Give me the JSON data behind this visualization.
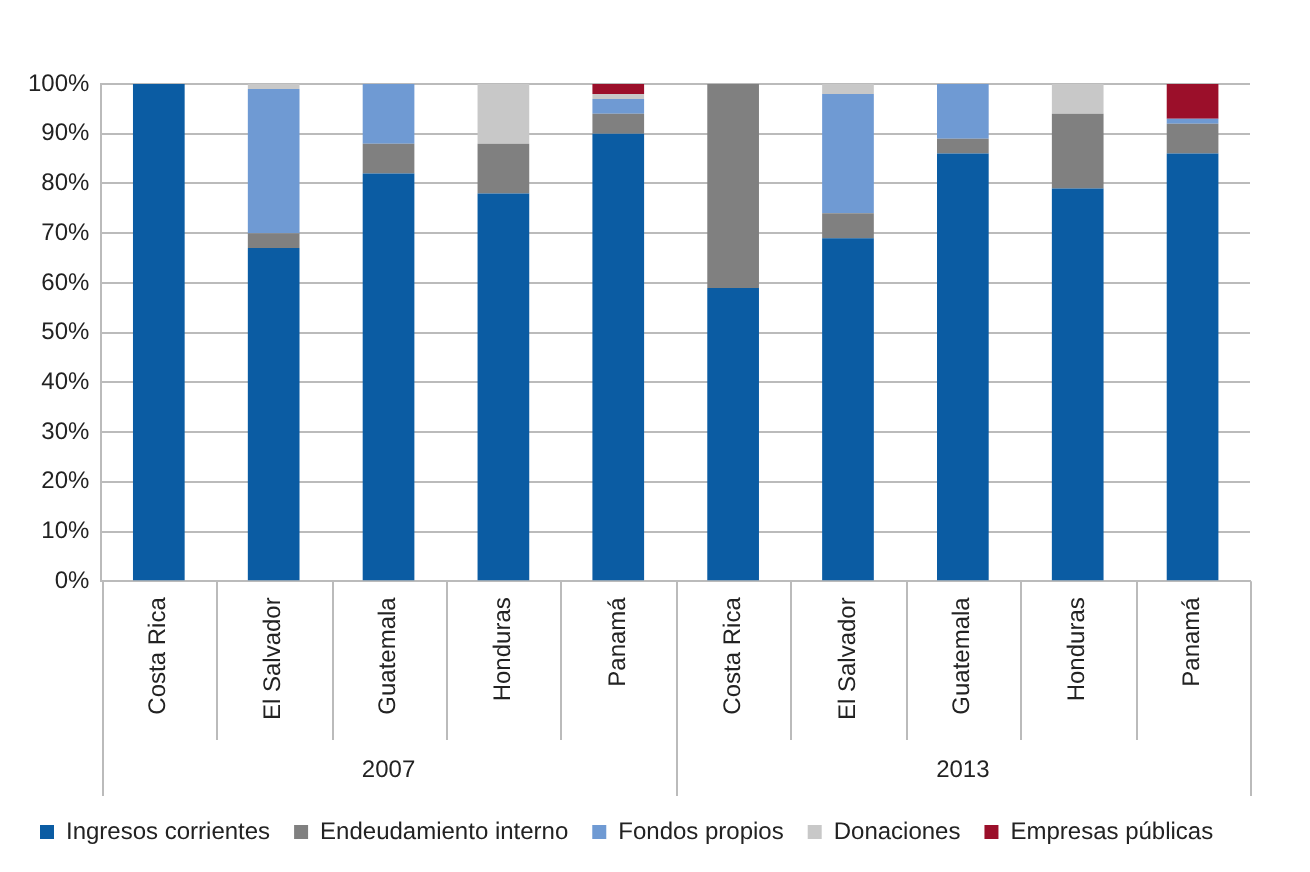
{
  "chart_data": {
    "type": "bar",
    "stacked": true,
    "categories": [
      "Costa Rica",
      "El Salvador",
      "Guatemala",
      "Honduras",
      "Panamá",
      "Costa Rica",
      "El Salvador",
      "Guatemala",
      "Honduras",
      "Panamá"
    ],
    "series": [
      {
        "name": "Ingresos corrientes",
        "color": "#0b5ca3",
        "values": [
          100,
          67,
          82,
          78,
          90,
          59,
          69,
          86,
          79,
          86
        ]
      },
      {
        "name": "Endeudamiento interno",
        "color": "#808080",
        "values": [
          0,
          3,
          6,
          10,
          4,
          41,
          5,
          3,
          15,
          6
        ]
      },
      {
        "name": "Fondos propios",
        "color": "#6f9ad3",
        "values": [
          0,
          29,
          12,
          0,
          3,
          0,
          24,
          11,
          0,
          1
        ]
      },
      {
        "name": "Donaciones",
        "color": "#c8c8c8",
        "values": [
          0,
          1,
          0,
          12,
          1,
          0,
          2,
          0,
          6,
          0
        ]
      },
      {
        "name": "Empresas públicas",
        "color": "#9b0f2a",
        "values": [
          0,
          0,
          0,
          0,
          2,
          0,
          0,
          0,
          0,
          7
        ]
      }
    ],
    "ylim": [
      0,
      100
    ],
    "yticks": [
      {
        "value": 0,
        "label": "0%"
      },
      {
        "value": 10,
        "label": "10%"
      },
      {
        "value": 20,
        "label": "20%"
      },
      {
        "value": 30,
        "label": "30%"
      },
      {
        "value": 40,
        "label": "40%"
      },
      {
        "value": 50,
        "label": "50%"
      },
      {
        "value": 60,
        "label": "60%"
      },
      {
        "value": 70,
        "label": "70%"
      },
      {
        "value": 80,
        "label": "80%"
      },
      {
        "value": 90,
        "label": "90%"
      },
      {
        "value": 100,
        "label": "100%"
      }
    ],
    "annotations": [
      "2007",
      "2013"
    ],
    "grid": "y",
    "legend": "bottom"
  }
}
